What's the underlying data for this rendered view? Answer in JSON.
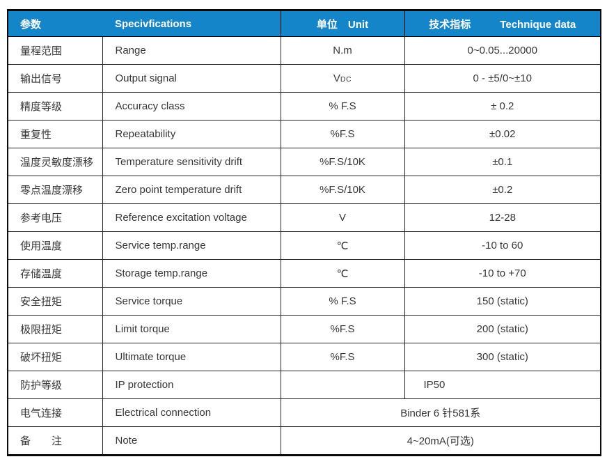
{
  "colors": {
    "header_bg": "#1485c8",
    "header_text": "#ffffff",
    "grid_line": "#242424",
    "outer_border": "#0a0a0a",
    "body_text": "#363636"
  },
  "header": {
    "param_zh": "参数",
    "spec_en": "Specivfications",
    "unit_zh": "单位",
    "unit_en": "Unit",
    "data_zh": "技术指标",
    "data_en": "Technique data"
  },
  "rows": [
    {
      "zh": "量程范围",
      "en": "Range",
      "unit": "N.m",
      "value": "0~0.05...20000"
    },
    {
      "zh": "输出信号",
      "en": "Output signal",
      "unit": "V",
      "unit_small": "DC",
      "value": "0 - ±5/0~±10"
    },
    {
      "zh": "精度等级",
      "en": "Accuracy class",
      "unit": "% F.S",
      "value": "± 0.2"
    },
    {
      "zh": "重复性",
      "en": "Repeatability",
      "unit": "%F.S",
      "value": "±0.02"
    },
    {
      "zh": "温度灵敏度漂移",
      "en": "Temperature sensitivity drift",
      "unit": "%F.S/10K",
      "value": "±0.1"
    },
    {
      "zh": "零点温度漂移",
      "en": "Zero point temperature drift",
      "unit": "%F.S/10K",
      "value": "±0.2"
    },
    {
      "zh": "参考电压",
      "en": "Reference excitation voltage",
      "unit": "V",
      "value": "12-28"
    },
    {
      "zh": "使用温度",
      "en": "Service temp.range",
      "unit": "℃",
      "value": "-10 to 60"
    },
    {
      "zh": "存储温度",
      "en": "Storage temp.range",
      "unit": "℃",
      "value": "-10 to +70"
    },
    {
      "zh": "安全扭矩",
      "en": "Service torque",
      "unit": "% F.S",
      "value": "150 (static)"
    },
    {
      "zh": "极限扭矩",
      "en": "Limit torque",
      "unit": "%F.S",
      "value": "200 (static)"
    },
    {
      "zh": "破坏扭矩",
      "en": "Ultimate torque",
      "unit": "%F.S",
      "value": "300 (static)"
    },
    {
      "zh": "防护等级",
      "en": "IP protection",
      "unit": "",
      "value": "IP50",
      "value_align": "left"
    },
    {
      "zh": "电气连接",
      "en": "Electrical connection",
      "merged_value": "Binder 6 针581系"
    },
    {
      "zh": "备　　注",
      "en": "Note",
      "merged_value": "4~20mA(可选)"
    }
  ]
}
